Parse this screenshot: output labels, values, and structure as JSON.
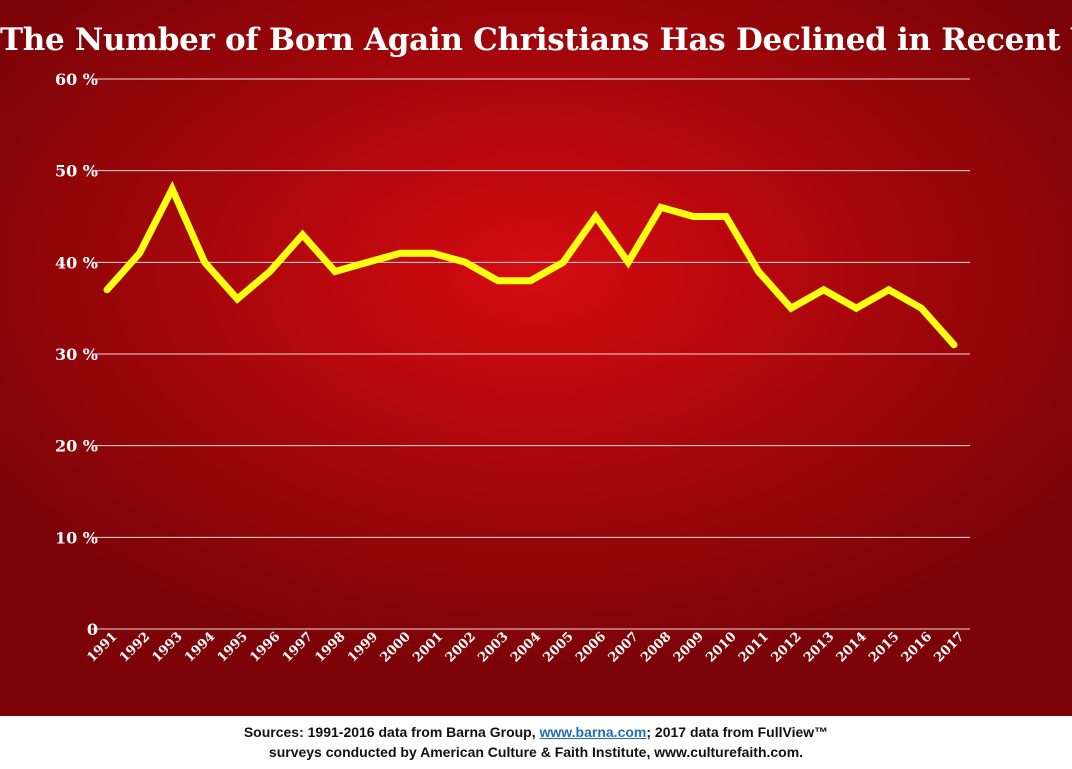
{
  "chart_data": {
    "type": "line",
    "title": "The Number of Born Again Christians Has Declined in Recent Years",
    "xlabel": "",
    "ylabel": "",
    "x": [
      "1991",
      "1992",
      "1993",
      "1994",
      "1995",
      "1996",
      "1997",
      "1998",
      "1999",
      "2000",
      "2001",
      "2002",
      "2003",
      "2004",
      "2005",
      "2006",
      "2007",
      "2008",
      "2009",
      "2010",
      "2011",
      "2012",
      "2013",
      "2014",
      "2015",
      "2016",
      "2017"
    ],
    "series": [
      {
        "values": [
          37,
          41,
          48,
          40,
          36,
          39,
          43,
          39,
          40,
          41,
          41,
          40,
          38,
          38,
          40,
          45,
          40,
          46,
          45,
          45,
          39,
          35,
          37,
          35,
          37,
          35,
          31
        ]
      }
    ],
    "ylim": [
      0,
      60
    ],
    "yticks": [
      0,
      10,
      20,
      30,
      40,
      50,
      60
    ],
    "ytick_labels": [
      "0",
      "10 %",
      "20 %",
      "30 %",
      "40 %",
      "50 %",
      "60 %"
    ],
    "grid": true,
    "legend": "none",
    "line_color": "#ffff14",
    "background_color": "#b7080d"
  },
  "footer": {
    "line1_prefix": "Sources: 1991-2016 data from Barna Group, ",
    "line1_link": "www.barna.com",
    "line1_suffix": "; 2017 data from FullView™",
    "line2": "surveys conducted by American Culture & Faith Institute, www.culturefaith.com."
  }
}
